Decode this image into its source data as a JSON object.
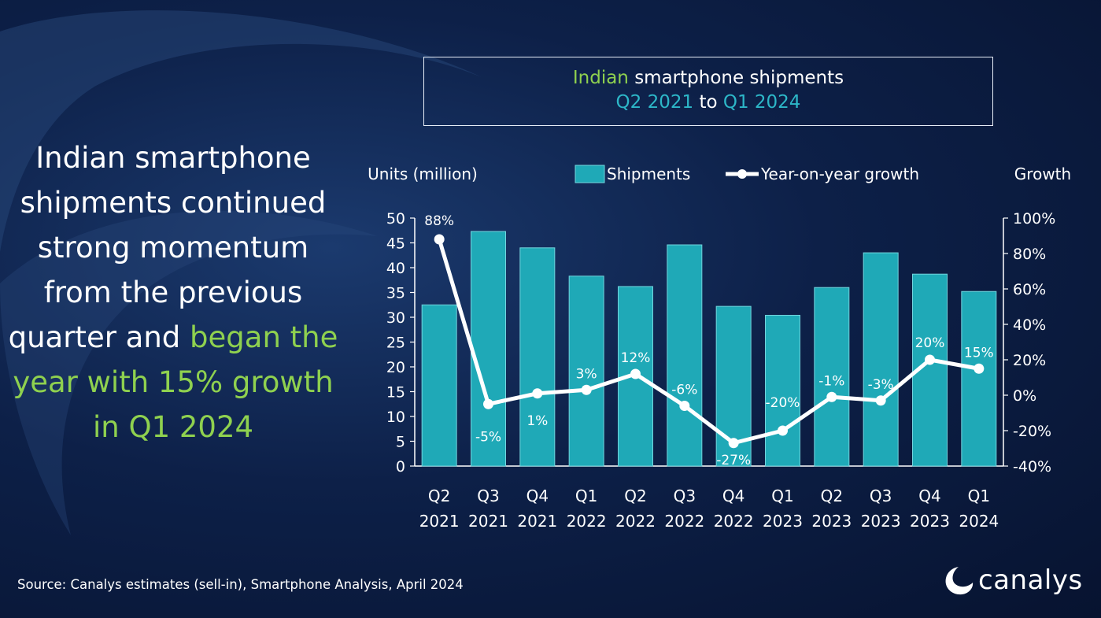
{
  "headline": {
    "part1": "Indian smartphone shipments continued strong momentum from the previous quarter and ",
    "part2": "began the year with 15% growth in Q1 2024"
  },
  "title": {
    "w1": "Indian",
    "w2": " smartphone shipments",
    "w3": "Q2 2021",
    "w4": " to ",
    "w5": "Q1 2024"
  },
  "legend": {
    "left_axis_label": "Units (million)",
    "shipments": "Shipments",
    "growth": "Year-on-year growth",
    "right_axis_label": "Growth"
  },
  "colors": {
    "bar": "#1fa9b7",
    "bar_edge": "#73d5de",
    "line": "#ffffff",
    "highlight": "#8fd14f",
    "accent_teal": "#2db7c8"
  },
  "chart_data": {
    "type": "bar",
    "categories": [
      "Q2 2021",
      "Q3 2021",
      "Q4 2021",
      "Q1 2022",
      "Q2 2022",
      "Q3 2022",
      "Q4 2022",
      "Q1 2023",
      "Q2 2023",
      "Q3 2023",
      "Q4 2023",
      "Q1 2024"
    ],
    "category_lines": [
      [
        "Q2",
        "2021"
      ],
      [
        "Q3",
        "2021"
      ],
      [
        "Q4",
        "2021"
      ],
      [
        "Q1",
        "2022"
      ],
      [
        "Q2",
        "2022"
      ],
      [
        "Q3",
        "2022"
      ],
      [
        "Q4",
        "2022"
      ],
      [
        "Q1",
        "2023"
      ],
      [
        "Q2",
        "2023"
      ],
      [
        "Q3",
        "2023"
      ],
      [
        "Q4",
        "2023"
      ],
      [
        "Q1",
        "2024"
      ]
    ],
    "series": [
      {
        "name": "Shipments",
        "type": "bar",
        "axis": "left",
        "values": [
          32.5,
          47.3,
          44.0,
          38.3,
          36.2,
          44.6,
          32.2,
          30.4,
          36.0,
          43.0,
          38.7,
          35.2
        ]
      },
      {
        "name": "Year-on-year growth",
        "type": "line",
        "axis": "right",
        "values": [
          88,
          -5,
          1,
          3,
          12,
          -6,
          -27,
          -20,
          -1,
          -3,
          20,
          15
        ],
        "labels": [
          "88%",
          "-5%",
          "1%",
          "3%",
          "12%",
          "-6%",
          "-27%",
          "-20%",
          "-1%",
          "-3%",
          "20%",
          "15%"
        ]
      }
    ],
    "ylabel": "Units (million)",
    "ylim": [
      0,
      50
    ],
    "yticks": [
      0,
      5,
      10,
      15,
      20,
      25,
      30,
      35,
      40,
      45,
      50
    ],
    "y2label": "Growth",
    "y2lim": [
      -40,
      100
    ],
    "y2ticks": [
      -40,
      -20,
      0,
      20,
      40,
      60,
      80,
      100
    ],
    "y2tick_labels": [
      "-40%",
      "-20%",
      "0%",
      "20%",
      "40%",
      "60%",
      "80%",
      "100%"
    ],
    "legend_position": "top",
    "grid": false
  },
  "source": "Source:  Canalys estimates (sell-in), Smartphone Analysis, April 2024",
  "logo": "canalys"
}
